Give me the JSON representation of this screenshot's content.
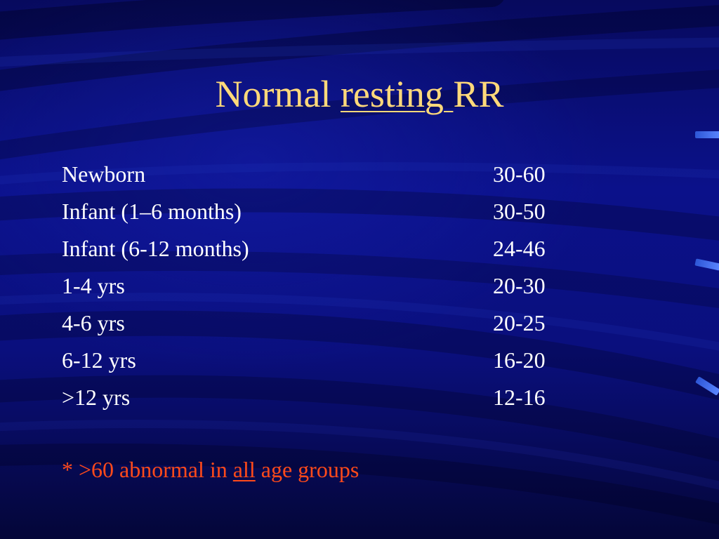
{
  "title": {
    "part1": "Normal ",
    "part2": "resting ",
    "part3": "RR"
  },
  "rows": [
    {
      "age": "Newborn",
      "rate": "30-60"
    },
    {
      "age": "Infant (1–6 months)",
      "rate": "30-50"
    },
    {
      "age": "Infant (6-12 months)",
      "rate": "24-46"
    },
    {
      "age": "1-4 yrs",
      "rate": "20-30"
    },
    {
      "age": "4-6 yrs",
      "rate": "20-25"
    },
    {
      "age": "6-12 yrs",
      "rate": "16-20"
    },
    {
      "age": ">12 yrs",
      "rate": "12-16"
    }
  ],
  "note": {
    "prefix": "* >60 abnormal in ",
    "emphasis": "all",
    "suffix": " age groups"
  },
  "colors": {
    "background": "#0b118a",
    "title": "#ffd97a",
    "body_text": "#ffffff",
    "note": "#ff4a1a",
    "accent": "#3a66e8"
  }
}
